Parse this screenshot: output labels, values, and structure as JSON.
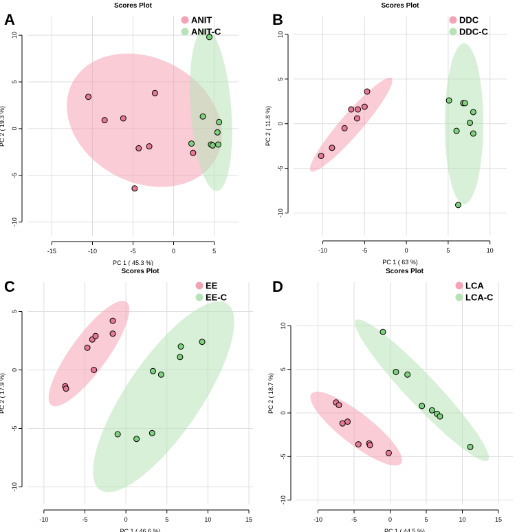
{
  "colors": {
    "group_fill": "#f4a3b5",
    "group_point": "#e57a93",
    "control_fill": "#b8e3b8",
    "control_point": "#7fd17f",
    "grid": "#dddddd",
    "axis": "#000000"
  },
  "chart_data": [
    {
      "letter": "A",
      "type": "scatter",
      "title": "Scores Plot",
      "xlabel": "PC 1 ( 45.3 %)",
      "ylabel": "PC 2 ( 19.3 %)",
      "xlim": [
        -18,
        8
      ],
      "ylim": [
        -11.5,
        12
      ],
      "xticks": [
        -15,
        -10,
        -5,
        0,
        5
      ],
      "yticks": [
        -10,
        -5,
        0,
        5,
        10
      ],
      "legend": [
        "ANIT",
        "ANIT-C"
      ],
      "series": [
        {
          "name": "ANIT",
          "points": [
            [
              -10.5,
              3.4
            ],
            [
              -8.5,
              0.9
            ],
            [
              -6.2,
              1.1
            ],
            [
              -2.3,
              3.8
            ],
            [
              -4.3,
              -2.1
            ],
            [
              -3.0,
              -1.9
            ],
            [
              -4.8,
              -6.4
            ],
            [
              2.4,
              -2.6
            ]
          ],
          "ellipse": {
            "cx": -3.6,
            "cy": 0.9,
            "rx": 9.8,
            "ry": 6.8,
            "angle": -18
          }
        },
        {
          "name": "ANIT-C",
          "points": [
            [
              4.4,
              9.8
            ],
            [
              3.6,
              1.3
            ],
            [
              5.6,
              0.7
            ],
            [
              5.4,
              -0.4
            ],
            [
              4.6,
              -1.7
            ],
            [
              4.8,
              -1.8
            ],
            [
              5.5,
              -1.7
            ],
            [
              2.2,
              -1.6
            ]
          ],
          "ellipse": {
            "cx": 4.6,
            "cy": 2.0,
            "rx": 2.5,
            "ry": 8.7,
            "angle": 5
          }
        }
      ]
    },
    {
      "letter": "B",
      "type": "scatter",
      "title": "Scores Plot",
      "xlabel": "PC 1 ( 63 %)",
      "ylabel": "PC 2 ( 11.8 %)",
      "xlim": [
        -13.5,
        12
      ],
      "ylim": [
        -12.5,
        12
      ],
      "xticks": [
        -10,
        -5,
        0,
        5,
        10
      ],
      "yticks": [
        -10,
        -5,
        0,
        5,
        10
      ],
      "legend": [
        "DDC",
        "DDC-C"
      ],
      "series": [
        {
          "name": "DDC",
          "points": [
            [
              -10.2,
              -3.6
            ],
            [
              -8.9,
              -2.7
            ],
            [
              -7.4,
              -0.5
            ],
            [
              -6.6,
              1.6
            ],
            [
              -5.8,
              1.6
            ],
            [
              -5.9,
              0.6
            ],
            [
              -5.0,
              1.9
            ],
            [
              -4.7,
              3.6
            ]
          ],
          "ellipse": {
            "cx": -6.6,
            "cy": -0.1,
            "rx": 7.1,
            "ry": 1.25,
            "angle": 47
          }
        },
        {
          "name": "DDC-C",
          "points": [
            [
              5.1,
              2.6
            ],
            [
              6.8,
              2.3
            ],
            [
              7.0,
              2.3
            ],
            [
              8.0,
              1.3
            ],
            [
              7.6,
              0.1
            ],
            [
              6.0,
              -0.8
            ],
            [
              8.0,
              -1.1
            ],
            [
              6.2,
              -9.1
            ]
          ],
          "ellipse": {
            "cx": 6.9,
            "cy": 0.0,
            "rx": 2.3,
            "ry": 9.0,
            "angle": 0
          }
        }
      ]
    },
    {
      "letter": "C",
      "type": "scatter",
      "title": "Scores Plot",
      "xlabel": "PC 1 ( 46.6 %)",
      "ylabel": "PC 2 ( 17.9 %)",
      "xlim": [
        -12,
        15.5
      ],
      "ylim": [
        -11.5,
        7.5
      ],
      "xticks": [
        -10,
        -5,
        0,
        5,
        10,
        15
      ],
      "yticks": [
        -10,
        -5,
        0,
        5
      ],
      "legend": [
        "EE",
        "EE-C"
      ],
      "series": [
        {
          "name": "EE",
          "points": [
            [
              -7.4,
              -1.4
            ],
            [
              -7.3,
              -1.6
            ],
            [
              -4.7,
              1.9
            ],
            [
              -4.1,
              2.6
            ],
            [
              -3.7,
              2.9
            ],
            [
              -3.9,
              0.0
            ],
            [
              -1.6,
              3.1
            ],
            [
              -1.6,
              4.2
            ]
          ],
          "ellipse": {
            "cx": -4.5,
            "cy": 1.4,
            "rx": 6.4,
            "ry": 1.9,
            "angle": 42
          }
        },
        {
          "name": "EE-C",
          "points": [
            [
              9.3,
              2.4
            ],
            [
              6.7,
              2.0
            ],
            [
              6.6,
              1.1
            ],
            [
              3.3,
              -0.1
            ],
            [
              4.3,
              -0.4
            ],
            [
              -1.0,
              -5.5
            ],
            [
              1.3,
              -5.9
            ],
            [
              3.2,
              -5.4
            ]
          ],
          "ellipse": {
            "cx": 4.6,
            "cy": -2.3,
            "rx": 11.2,
            "ry": 3.9,
            "angle": 43
          }
        }
      ]
    },
    {
      "letter": "D",
      "type": "scatter",
      "title": "Scores Plot",
      "xlabel": "PC 1 ( 44.5 %)",
      "ylabel": "PC 2 ( 18.7 %)",
      "xlim": [
        -13,
        17
      ],
      "ylim": [
        -10.5,
        15
      ],
      "xticks": [
        -10,
        -5,
        0,
        5,
        10,
        15
      ],
      "yticks": [
        -10,
        -5,
        0,
        5,
        10
      ],
      "legend": [
        "LCA",
        "LCA-C"
      ],
      "series": [
        {
          "name": "LCA",
          "points": [
            [
              -7.5,
              1.2
            ],
            [
              -7.1,
              0.9
            ],
            [
              -6.6,
              -1.2
            ],
            [
              -5.9,
              -1.0
            ],
            [
              -4.4,
              -3.6
            ],
            [
              -2.9,
              -3.5
            ],
            [
              -2.8,
              -3.7
            ],
            [
              -0.2,
              -4.6
            ]
          ],
          "ellipse": {
            "cx": -4.7,
            "cy": -1.8,
            "rx": 7.4,
            "ry": 1.9,
            "angle": -32
          }
        },
        {
          "name": "LCA-C",
          "points": [
            [
              -1.0,
              9.3
            ],
            [
              0.8,
              4.7
            ],
            [
              2.4,
              4.4
            ],
            [
              4.4,
              0.8
            ],
            [
              5.8,
              0.3
            ],
            [
              6.5,
              -0.1
            ],
            [
              6.9,
              -0.4
            ],
            [
              11.1,
              -3.9
            ]
          ],
          "ellipse": {
            "cx": 4.4,
            "cy": 2.6,
            "rx": 12.2,
            "ry": 1.9,
            "angle": -41
          }
        }
      ]
    }
  ]
}
